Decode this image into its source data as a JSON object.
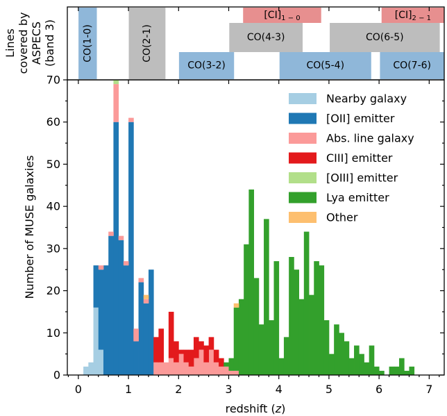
{
  "chart_data": [
    {
      "type": "bar",
      "panel": "top",
      "ylabel_lines": [
        "Lines",
        "covered by",
        "ASPECS",
        "(band 3)"
      ],
      "bands": [
        {
          "label": "CO(1-0)",
          "z_range": [
            0.003,
            0.369
          ],
          "row": "full",
          "color": "#8fb7d9",
          "vertical": true
        },
        {
          "label": "CO(2-1)",
          "z_range": [
            1.006,
            1.738
          ],
          "row": "full",
          "color": "#bdbdbd",
          "vertical": true
        },
        {
          "label": "CO(3-2)",
          "z_range": [
            2.008,
            3.107
          ],
          "row": "bottom",
          "color": "#8fb7d9"
        },
        {
          "label": "CO(4-3)",
          "z_range": [
            3.011,
            4.475
          ],
          "row": "middle",
          "color": "#bdbdbd"
        },
        {
          "label": "CO(5-4)",
          "z_range": [
            4.014,
            5.843
          ],
          "row": "bottom",
          "color": "#8fb7d9"
        },
        {
          "label": "CO(6-5)",
          "z_range": [
            5.016,
            7.211
          ],
          "row": "middle",
          "color": "#bdbdbd"
        },
        {
          "label": "CO(7-6)",
          "z_range": [
            6.018,
            8.578
          ],
          "row": "bottom",
          "color": "#8fb7d9"
        },
        {
          "label": "[CI]",
          "sub": "1 − 0",
          "z_range": [
            3.287,
            4.845
          ],
          "row": "top",
          "color": "#e78f8f"
        },
        {
          "label": "[CI]",
          "sub": "2 − 1",
          "z_range": [
            6.05,
            8.656
          ],
          "row": "top",
          "color": "#e78f8f"
        }
      ]
    },
    {
      "type": "bar",
      "panel": "main",
      "stacked": true,
      "xlabel": "redshift (",
      "xlabel_var": "z",
      "xlabel_end": ")",
      "ylabel": "Number of MUSE galaxies",
      "xlim": [
        -0.22,
        7.3
      ],
      "ylim": [
        0,
        70
      ],
      "bin_width": 0.1,
      "x_ticks": [
        "0",
        "1",
        "2",
        "3",
        "4",
        "5",
        "6",
        "7"
      ],
      "y_ticks": [
        "0",
        "10",
        "20",
        "30",
        "40",
        "50",
        "60",
        "70"
      ],
      "legend_position": "top-right",
      "series": [
        {
          "name": "Nearby galaxy",
          "color": "#a6cee3",
          "bins": [
            [
              0.1,
              2
            ],
            [
              0.2,
              3
            ],
            [
              0.3,
              16
            ],
            [
              0.4,
              6
            ]
          ]
        },
        {
          "name": "[OII] emitter",
          "color": "#1f78b4",
          "bins": [
            [
              0.3,
              10
            ],
            [
              0.4,
              19
            ],
            [
              0.5,
              26
            ],
            [
              0.6,
              33
            ],
            [
              0.7,
              60
            ],
            [
              0.8,
              32
            ],
            [
              0.9,
              26
            ],
            [
              1.0,
              60
            ],
            [
              1.1,
              8
            ],
            [
              1.2,
              22
            ],
            [
              1.3,
              17
            ],
            [
              1.4,
              25
            ]
          ]
        },
        {
          "name": "Abs. line galaxy",
          "color": "#fb9a99",
          "bins": [
            [
              0.4,
              1
            ],
            [
              0.6,
              1
            ],
            [
              0.7,
              9
            ],
            [
              0.8,
              1
            ],
            [
              0.9,
              1
            ],
            [
              1.0,
              1
            ],
            [
              1.1,
              3
            ],
            [
              1.2,
              1
            ],
            [
              1.3,
              1
            ],
            [
              1.5,
              3
            ],
            [
              1.6,
              3
            ],
            [
              1.7,
              3
            ],
            [
              1.8,
              4
            ],
            [
              1.9,
              3
            ],
            [
              2.0,
              5
            ],
            [
              2.1,
              3
            ],
            [
              2.2,
              2
            ],
            [
              2.3,
              4
            ],
            [
              2.4,
              6
            ],
            [
              2.5,
              3
            ],
            [
              2.6,
              6
            ],
            [
              2.7,
              3
            ],
            [
              2.8,
              2
            ],
            [
              2.9,
              2
            ],
            [
              3.0,
              1
            ],
            [
              3.1,
              1
            ]
          ]
        },
        {
          "name": "CIII] emitter",
          "color": "#e31a1c",
          "bins": [
            [
              1.5,
              6
            ],
            [
              1.6,
              8
            ],
            [
              1.8,
              11
            ],
            [
              1.9,
              5
            ],
            [
              2.0,
              1
            ],
            [
              2.1,
              3
            ],
            [
              2.2,
              4
            ],
            [
              2.3,
              5
            ],
            [
              2.4,
              2
            ],
            [
              2.5,
              4
            ],
            [
              2.6,
              3
            ],
            [
              2.7,
              3
            ],
            [
              2.8,
              2
            ]
          ]
        },
        {
          "name": "[OIII] emitter",
          "color": "#b2df8a",
          "bins": [
            [
              0.7,
              1
            ]
          ]
        },
        {
          "name": "Lya emitter",
          "color": "#33a02c",
          "bins": [
            [
              2.9,
              1
            ],
            [
              3.0,
              3
            ],
            [
              3.1,
              15
            ],
            [
              3.2,
              18
            ],
            [
              3.3,
              31
            ],
            [
              3.4,
              44
            ],
            [
              3.5,
              23
            ],
            [
              3.6,
              12
            ],
            [
              3.7,
              37
            ],
            [
              3.8,
              13
            ],
            [
              3.9,
              27
            ],
            [
              4.0,
              4
            ],
            [
              4.1,
              9
            ],
            [
              4.2,
              28
            ],
            [
              4.3,
              25
            ],
            [
              4.4,
              18
            ],
            [
              4.5,
              34
            ],
            [
              4.6,
              19
            ],
            [
              4.7,
              27
            ],
            [
              4.8,
              26
            ],
            [
              4.9,
              13
            ],
            [
              5.0,
              5
            ],
            [
              5.1,
              12
            ],
            [
              5.2,
              10
            ],
            [
              5.3,
              8
            ],
            [
              5.4,
              4
            ],
            [
              5.5,
              7
            ],
            [
              5.6,
              5
            ],
            [
              5.7,
              3
            ],
            [
              5.8,
              7
            ],
            [
              5.9,
              2
            ],
            [
              6.0,
              1
            ],
            [
              6.1,
              0
            ],
            [
              6.2,
              2
            ],
            [
              6.3,
              2
            ],
            [
              6.4,
              4
            ],
            [
              6.5,
              1
            ],
            [
              6.6,
              2
            ],
            [
              6.7,
              0
            ]
          ]
        },
        {
          "name": "Other",
          "color": "#fdbf6f",
          "bins": [
            [
              1.3,
              1
            ],
            [
              3.1,
              1
            ]
          ]
        }
      ]
    }
  ]
}
